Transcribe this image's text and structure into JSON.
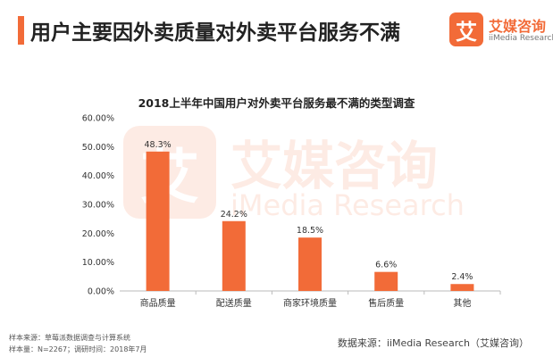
{
  "header": {
    "title": "用户主要因外卖质量对外卖平台服务不满"
  },
  "brand": {
    "name": "艾媒咨询",
    "sub": "iiMedia Research",
    "mark_char": "艾",
    "watermark_sub": "iMedia Research"
  },
  "colors": {
    "accent": "#F26B38",
    "bar": "#F26B38",
    "axis": "#BBBBBB"
  },
  "chart_data": {
    "type": "bar",
    "title": "2018上半年中国用户对外卖平台服务最不满的类型调查",
    "categories": [
      "商品质量",
      "配送质量",
      "商家环境质量",
      "售后质量",
      "其他"
    ],
    "values": [
      48.3,
      24.2,
      18.5,
      6.6,
      2.4
    ],
    "value_labels": [
      "48.3%",
      "24.2%",
      "18.5%",
      "6.6%",
      "2.4%"
    ],
    "yticks": [
      0,
      10,
      20,
      30,
      40,
      50,
      60
    ],
    "ytick_labels": [
      "0.00%",
      "10.00%",
      "20.00%",
      "30.00%",
      "40.00%",
      "50.00%",
      "60.00%"
    ],
    "ylim": [
      0,
      60
    ],
    "xlabel": "",
    "ylabel": "",
    "grid": false,
    "legend": "none"
  },
  "footer": {
    "sample_source": "样本来源：草莓派数据调查与计算系统",
    "sample_info": "样本量：N=2267；调研时间：2018年7月",
    "data_source": "数据来源：iiMedia Research（艾媒咨询）"
  }
}
